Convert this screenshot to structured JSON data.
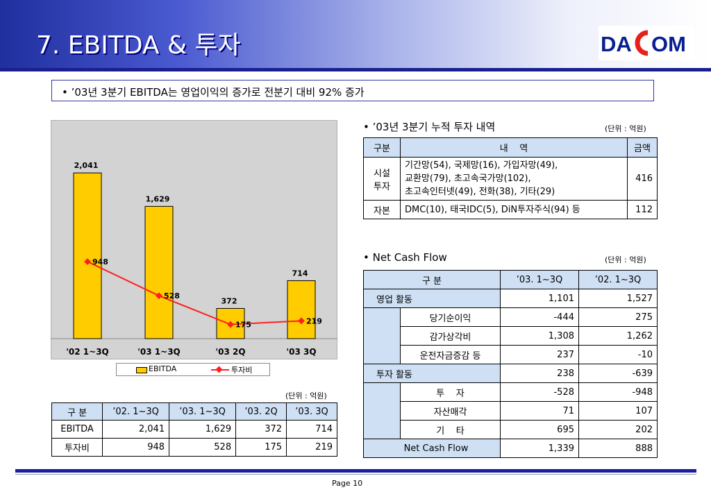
{
  "header": {
    "title": "7. EBITDA & 투자"
  },
  "logo": {
    "left_text": "DA",
    "right_text": "OM",
    "brand_color": "#0a1f8f",
    "accent_color": "#e8201c"
  },
  "summary": "• ’03년 3분기 EBITDA는 영업이익의 증가로 전분기 대비 92% 증가",
  "chart_data": {
    "type": "bar",
    "categories": [
      "'02 1~3Q",
      "'03 1~3Q",
      "'03 2Q",
      "'03 3Q"
    ],
    "series": [
      {
        "name": "EBITDA",
        "type": "bar",
        "values": [
          2041,
          1629,
          372,
          714
        ],
        "labels": [
          "2,041",
          "1,629",
          "372",
          "714"
        ],
        "color": "#ffcc00"
      },
      {
        "name": "투자비",
        "type": "line",
        "values": [
          948,
          528,
          175,
          219
        ],
        "labels": [
          "948",
          "528",
          "175",
          "219"
        ],
        "color": "#ff1f1f"
      }
    ],
    "ylim": [
      0,
      2350
    ],
    "legend": "bottom"
  },
  "chart_table": {
    "unit": "(단위 : 억원)",
    "headers": [
      "구 분",
      "’02. 1~3Q",
      "’03. 1~3Q",
      "’03. 2Q",
      "’03. 3Q"
    ],
    "rows": [
      [
        "EBITDA",
        "2,041",
        "1,629",
        "372",
        "714"
      ],
      [
        "투자비",
        "948",
        "528",
        "175",
        "219"
      ]
    ]
  },
  "invest": {
    "title": "• ’03년 3분기 누적 투자 내역",
    "unit": "(단위 : 억원)",
    "headers": [
      "구분",
      "내    역",
      "금액"
    ],
    "rows": [
      {
        "cat": "시설\n투자",
        "detail": "기간망(54), 국제망(16), 가입자망(49),\n교환망(79), 초고속국가망(102),\n초고속인터넷(49), 전화(38), 기타(29)",
        "amount": "416"
      },
      {
        "cat": "자본",
        "detail": "DMC(10), 태국IDC(5), DiN투자주식(94) 등",
        "amount": "112"
      }
    ]
  },
  "cashflow": {
    "title": "• Net Cash Flow",
    "unit": "(단위 : 억원)",
    "headers": [
      "구 분",
      "’03. 1~3Q",
      "’02. 1~3Q"
    ],
    "rows": [
      {
        "label": "영업 활동",
        "level": 0,
        "v1": "1,101",
        "v2": "1,527"
      },
      {
        "label": "당기순이익",
        "level": 1,
        "v1": "-444",
        "v2": "275"
      },
      {
        "label": "감가상각비",
        "level": 1,
        "v1": "1,308",
        "v2": "1,262"
      },
      {
        "label": "운전자금증감 등",
        "level": 1,
        "v1": "237",
        "v2": "-10"
      },
      {
        "label": "투자 활동",
        "level": 0,
        "v1": "238",
        "v2": "-639"
      },
      {
        "label": "투    자",
        "level": 1,
        "v1": "-528",
        "v2": "-948"
      },
      {
        "label": "자산매각",
        "level": 1,
        "v1": "71",
        "v2": "107"
      },
      {
        "label": "기    타",
        "level": 1,
        "v1": "695",
        "v2": "202"
      },
      {
        "label": "Net Cash Flow",
        "level": 0,
        "v1": "1,339",
        "v2": "888"
      }
    ]
  },
  "footer": {
    "page": "Page 10"
  }
}
